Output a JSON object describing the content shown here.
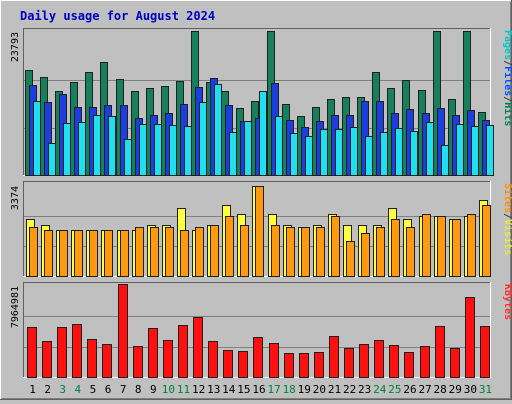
{
  "chart_data": {
    "type": "bar",
    "title": "Daily usage for August 2024",
    "categories": [
      "1",
      "2",
      "3",
      "4",
      "5",
      "6",
      "7",
      "8",
      "9",
      "10",
      "11",
      "12",
      "13",
      "14",
      "15",
      "16",
      "17",
      "18",
      "19",
      "20",
      "21",
      "22",
      "23",
      "24",
      "25",
      "26",
      "27",
      "28",
      "29",
      "30",
      "31"
    ],
    "weekend_days": [
      "3",
      "4",
      "10",
      "11",
      "17",
      "18",
      "24",
      "25",
      "31"
    ],
    "panels": [
      {
        "id": "hits",
        "max_label": "23793",
        "ymax": 23793,
        "legend": [
          "Pages",
          "/",
          "Files",
          "/",
          "Hits"
        ],
        "legend_colors": [
          "#00c8c8",
          "#404040",
          "#0050ff",
          "#404040",
          "#008050"
        ],
        "series": [
          {
            "name": "Hits",
            "color": "#16805c",
            "values": [
              17300,
              16100,
              13900,
              15300,
              17000,
              18500,
              15800,
              13800,
              14300,
              14700,
              15500,
              23700,
              15400,
              13800,
              11100,
              12200,
              23700,
              11800,
              9700,
              11300,
              12500,
              12800,
              12800,
              17000,
              14400,
              15600,
              14000,
              23700,
              12500,
              23700,
              10500
            ]
          },
          {
            "name": "Files",
            "color": "#1c3ee0",
            "values": [
              14900,
              12100,
              13400,
              11300,
              11300,
              11500,
              11600,
              9500,
              10000,
              10300,
              11800,
              14500,
              16000,
              11600,
              9000,
              9400,
              15200,
              9100,
              8000,
              8900,
              9900,
              10000,
              12300,
              12300,
              10300,
              10900,
              10300,
              11100,
              10000,
              10800,
              9200
            ]
          },
          {
            "name": "Pages",
            "color": "#20e0f0",
            "values": [
              12200,
              5400,
              8700,
              8800,
              10000,
              9800,
              6000,
              8500,
              8500,
              8300,
              8100,
              12000,
              15000,
              7200,
              9000,
              13800,
              9800,
              7000,
              6500,
              7700,
              7600,
              8000,
              6500,
              7100,
              7800,
              7400,
              8800,
              5100,
              8500,
              8200,
              8300
            ]
          }
        ]
      },
      {
        "id": "visits",
        "max_label": "3374",
        "ymax": 3374,
        "legend": [
          "Sites",
          "/",
          "Visits"
        ],
        "legend_colors": [
          "#ff9000",
          "#404040",
          "#e8e840"
        ],
        "series": [
          {
            "name": "Visits",
            "color": "#ffff40",
            "values": [
              2100,
              1900,
              1700,
              1700,
              1700,
              1700,
              1700,
              1700,
              1900,
              1900,
              2500,
              1700,
              1900,
              2600,
              2300,
              3300,
              2300,
              1900,
              1800,
              1900,
              2300,
              1900,
              1900,
              1900,
              2500,
              2100,
              2200,
              2200,
              2100,
              2200,
              2800
            ]
          },
          {
            "name": "Sites",
            "color": "#ff9910",
            "values": [
              1800,
              1700,
              1700,
              1700,
              1700,
              1700,
              1700,
              1800,
              1800,
              1800,
              1700,
              1800,
              1900,
              2200,
              1900,
              3300,
              1900,
              1800,
              1800,
              1800,
              2200,
              1300,
              1600,
              1800,
              2100,
              1800,
              2300,
              2200,
              2100,
              2300,
              2600
            ]
          }
        ]
      },
      {
        "id": "kbytes",
        "max_label": "7964981",
        "ymax": 7964981,
        "legend": [
          "KBytes"
        ],
        "legend_colors": [
          "#ff3030"
        ],
        "series": [
          {
            "name": "KBytes",
            "color": "#ff1010",
            "values": [
              4300000,
              3100000,
              4300000,
              4600000,
              3300000,
              2900000,
              7960000,
              2700000,
              4200000,
              3200000,
              4500000,
              5200000,
              3100000,
              2400000,
              2300000,
              3500000,
              3000000,
              2100000,
              2100000,
              2200000,
              3600000,
              2500000,
              2900000,
              3200000,
              2800000,
              2200000,
              2700000,
              4400000,
              2500000,
              6900000,
              4400000
            ]
          }
        ]
      }
    ]
  }
}
